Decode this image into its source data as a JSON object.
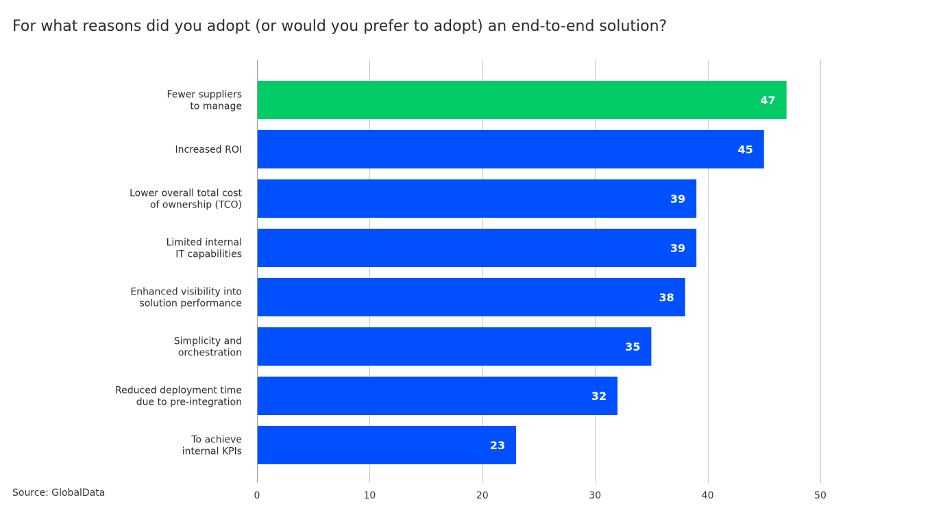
{
  "chart_data": {
    "type": "bar",
    "orientation": "horizontal",
    "title": "For what reasons did you adopt (or would you prefer to adopt) an end-to-end solution?",
    "source": "Source: GlobalData",
    "categories": [
      [
        "Fewer suppliers",
        "to manage"
      ],
      [
        "Increased ROI"
      ],
      [
        "Lower overall total cost",
        "of ownership (TCO)"
      ],
      [
        "Limited internal",
        "IT capabilities"
      ],
      [
        "Enhanced visibility into",
        "solution performance"
      ],
      [
        "Simplicity and",
        "orchestration"
      ],
      [
        "Reduced deployment time",
        "due to pre-integration"
      ],
      [
        "To achieve",
        "internal KPIs"
      ]
    ],
    "values": [
      47,
      45,
      39,
      39,
      38,
      35,
      32,
      23
    ],
    "xlim": [
      0,
      50
    ],
    "ticks": [
      0,
      10,
      20,
      30,
      40,
      50
    ],
    "grid": true,
    "legend": "none",
    "colors": {
      "highlight": "#00cc66",
      "default": "#0050ff",
      "grid": "#c8c8c8",
      "label": "#ffffff"
    },
    "highlight_index": 0
  }
}
